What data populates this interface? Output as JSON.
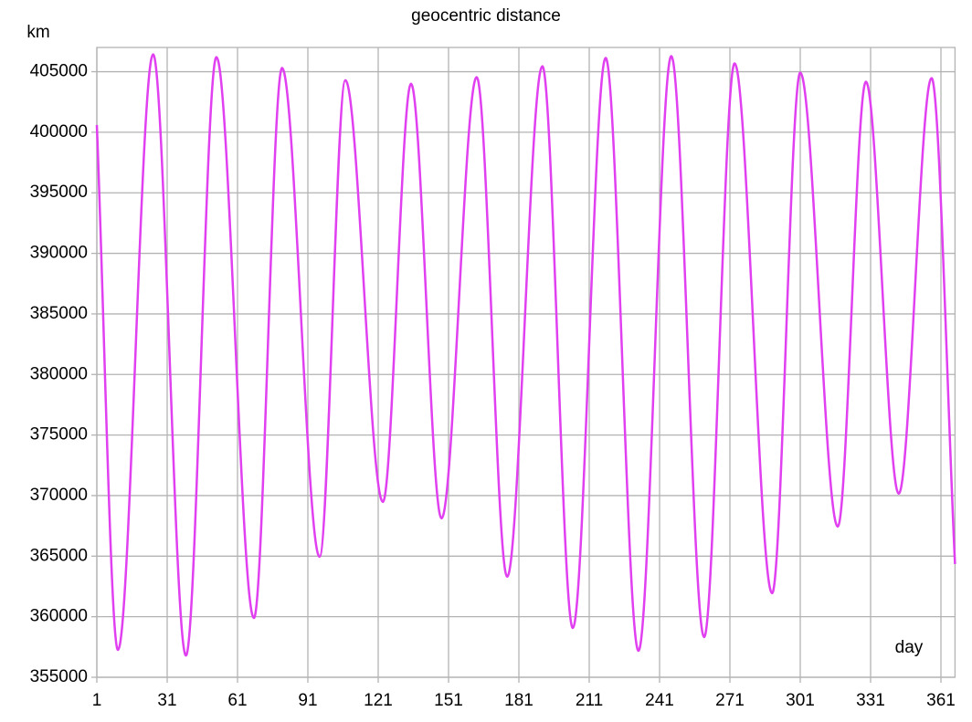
{
  "chart_data": {
    "type": "line",
    "title": "geocentric distance",
    "y_label": "km",
    "x_label": "day",
    "x": [
      1,
      10,
      25,
      39,
      52,
      68,
      80,
      96,
      107,
      123,
      135,
      148,
      163,
      176,
      191,
      204,
      218,
      232,
      246,
      260,
      273,
      289,
      301,
      317,
      329,
      343,
      357,
      367
    ],
    "series": [
      {
        "name": "geocentric distance",
        "color": "#e040f0",
        "values": [
          400600,
          357260,
          406430,
          356800,
          406200,
          359900,
          405300,
          364950,
          404300,
          369480,
          404000,
          368120,
          404550,
          363300,
          405450,
          359070,
          406130,
          357190,
          406280,
          358320,
          405680,
          361940,
          404920,
          367440,
          404170,
          370160,
          404470,
          364350
        ]
      }
    ],
    "xlim": [
      1,
      367
    ],
    "ylim": [
      355000,
      407000
    ],
    "xticks": [
      1,
      31,
      61,
      91,
      121,
      151,
      181,
      211,
      241,
      271,
      301,
      331,
      361
    ],
    "yticks": [
      355000,
      360000,
      365000,
      370000,
      375000,
      380000,
      385000,
      390000,
      395000,
      400000,
      405000
    ],
    "grid": true
  }
}
